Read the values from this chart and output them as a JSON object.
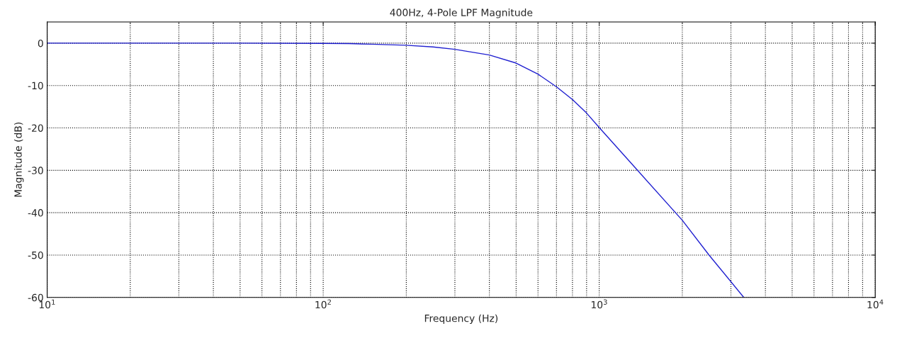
{
  "chart_data": {
    "type": "line",
    "title": "400Hz, 4-Pole LPF Magnitude",
    "xlabel": "Frequency (Hz)",
    "ylabel": "Magnitude (dB)",
    "log": "x",
    "grid": true,
    "xlim": [
      10,
      10000
    ],
    "xticks": [
      {
        "value": 10,
        "label": "10$^{1}$"
      },
      {
        "value": 100,
        "label": "10$^{2}$"
      },
      {
        "value": 1000,
        "label": "10$^{3}$"
      },
      {
        "value": 10000,
        "label": "10$^{4}$"
      }
    ],
    "ylim": [
      -60,
      5
    ],
    "yticks": [
      -60,
      -50,
      -40,
      -30,
      -20,
      -10,
      0
    ],
    "series": [
      {
        "color": "#2020d0",
        "x": [
          10,
          50,
          100,
          124,
          150,
          200,
          250,
          300,
          400,
          500,
          600,
          700,
          800,
          900,
          1000,
          1376,
          2000,
          2500,
          3340
        ],
        "values": [
          0,
          0,
          -0.05,
          -0.1,
          -0.25,
          -0.5,
          -0.9,
          -1.45,
          -2.8,
          -4.7,
          -7.3,
          -10.3,
          -13.3,
          -16.5,
          -19.9,
          -30,
          -41.8,
          -50,
          -60
        ]
      }
    ]
  }
}
